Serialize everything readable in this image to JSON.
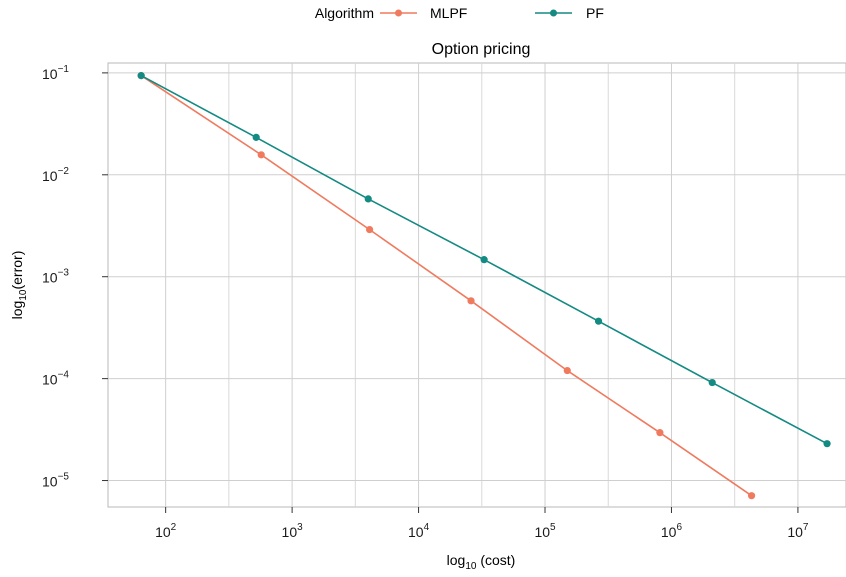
{
  "chart_data": {
    "type": "line",
    "title": "Option pricing",
    "xlabel": "log10 (cost)",
    "ylabel": "log10 (error)",
    "x_scale": "log",
    "y_scale": "log",
    "xlim": [
      35,
      24000000
    ],
    "ylim": [
      5.5e-06,
      0.125
    ],
    "x_ticks": [
      {
        "value": 100,
        "base": "10",
        "exp": "2"
      },
      {
        "value": 1000,
        "base": "10",
        "exp": "3"
      },
      {
        "value": 10000,
        "base": "10",
        "exp": "4"
      },
      {
        "value": 100000,
        "base": "10",
        "exp": "5"
      },
      {
        "value": 1000000,
        "base": "10",
        "exp": "6"
      },
      {
        "value": 10000000,
        "base": "10",
        "exp": "7"
      }
    ],
    "y_ticks": [
      {
        "value": 0.1,
        "base": "10",
        "exp": "−1"
      },
      {
        "value": 0.01,
        "base": "10",
        "exp": "−2"
      },
      {
        "value": 0.001,
        "base": "10",
        "exp": "−3"
      },
      {
        "value": 0.0001,
        "base": "10",
        "exp": "−4"
      },
      {
        "value": 1e-05,
        "base": "10",
        "exp": "−5"
      }
    ],
    "x_minor_gridlines": [
      316,
      3162,
      31623,
      316228,
      3162278
    ],
    "grid": true,
    "legend_title": "Algorithm",
    "legend_position": "top",
    "series": [
      {
        "name": "MLPF",
        "color": "#f07a5e",
        "points": [
          [
            64,
            0.094
          ],
          [
            570,
            0.0157
          ],
          [
            4100,
            0.0029
          ],
          [
            26000,
            0.00058
          ],
          [
            150000,
            0.00012
          ],
          [
            810000,
            2.95e-05
          ],
          [
            4300000,
            7.1e-06
          ]
        ]
      },
      {
        "name": "PF",
        "color": "#138a82",
        "points": [
          [
            64,
            0.094
          ],
          [
            520,
            0.0233
          ],
          [
            4000,
            0.0058
          ],
          [
            33000,
            0.00147
          ],
          [
            265000,
            0.000366
          ],
          [
            2100000,
            9.15e-05
          ],
          [
            17000000,
            2.3e-05
          ]
        ]
      }
    ]
  }
}
